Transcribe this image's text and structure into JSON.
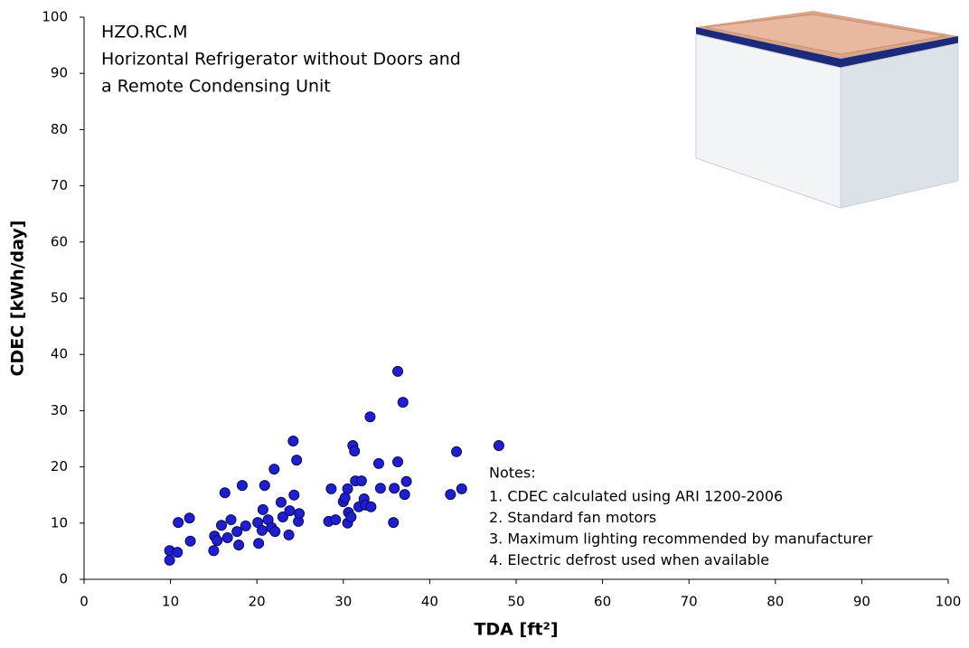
{
  "chart_data": {
    "type": "scatter",
    "title": [
      "HZO.RC.M",
      "Horizontal Refrigerator without Doors and",
      "a Remote Condensing Unit"
    ],
    "x_label": "TDA [ft²]",
    "y_label": "CDEC [kWh/day]",
    "notes_title": "Notes:",
    "notes": [
      "1.  CDEC calculated using ARI 1200-2006",
      "2.  Standard fan motors",
      "3.  Maximum lighting recommended by manufacturer",
      "4.  Electric defrost used when available"
    ],
    "color": "#1f1fd0",
    "xlim": [
      0,
      100
    ],
    "ylim": [
      0,
      100
    ],
    "xticks": [
      0,
      10,
      20,
      30,
      40,
      50,
      60,
      70,
      80,
      90,
      100
    ],
    "yticks": [
      0,
      10,
      20,
      30,
      40,
      50,
      60,
      70,
      80,
      90,
      100
    ],
    "x": [
      9.9,
      9.9,
      10.8,
      10.9,
      12.2,
      12.3,
      15,
      15.1,
      15.4,
      15.9,
      16.3,
      16.6,
      17,
      17.9,
      17.7,
      18.3,
      18.7,
      20.1,
      20.2,
      20.6,
      20.7,
      20.9,
      21.3,
      21.7,
      22,
      22.1,
      22.8,
      23,
      23.7,
      23.8,
      24.2,
      24.3,
      24.6,
      24.8,
      24.9,
      28.3,
      28.6,
      29.1,
      30,
      30.2,
      30.5,
      30.5,
      30.6,
      30.9,
      31.1,
      31.3,
      31.4,
      31.8,
      32.1,
      32.4,
      32.6,
      33.1,
      33.2,
      34.1,
      34.3,
      35.8,
      35.9,
      36.3,
      36.3,
      36.9,
      37.1,
      37.3,
      42.4,
      43.1,
      43.7,
      48
    ],
    "values": [
      5.1,
      3.4,
      4.8,
      10.1,
      10.9,
      6.8,
      5.1,
      7.7,
      6.9,
      9.6,
      15.4,
      7.4,
      10.6,
      6.1,
      8.5,
      16.7,
      9.5,
      10.1,
      6.4,
      8.7,
      12.4,
      16.7,
      10.6,
      9.2,
      19.6,
      8.5,
      13.7,
      11.1,
      7.9,
      12.2,
      24.6,
      15,
      21.2,
      10.3,
      11.7,
      10.3,
      16.1,
      10.6,
      13.8,
      14.5,
      16.1,
      10,
      11.9,
      11.1,
      23.8,
      22.8,
      17.5,
      12.9,
      17.5,
      14.3,
      13.2,
      28.9,
      12.9,
      20.6,
      16.2,
      10.1,
      16.2,
      37,
      20.9,
      31.5,
      15.1,
      17.4,
      15.1,
      22.7,
      16.1,
      23.8
    ]
  }
}
